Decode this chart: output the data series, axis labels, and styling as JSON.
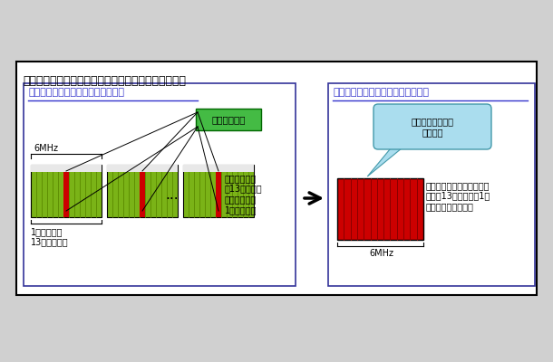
{
  "title": "従来のワンセグ放送とマルチワンセグメントサービス",
  "outer_box_color": "#000000",
  "bg_color": "#ffffff",
  "fig_bg": "#d0d0d0",
  "left_panel": {
    "title": "従来の「地上デジタルテレビ放送」",
    "title_color": "#3333cc",
    "box_bg": "#ffffff",
    "oneseg_label": "「ワンセグ」",
    "oneseg_box_color": "#00aa00",
    "oneseg_box_bg": "#44bb44",
    "mhz_label": "6MHz",
    "ch_label": "1チャンネル\n13セグメント",
    "annotation": "各チャンネル\nの13セグメン\nトの真ん中の\n1セグメント",
    "green_color": "#7ab317",
    "red_color": "#cc0000",
    "dark_green": "#5a8a00"
  },
  "right_panel": {
    "title": "「マルチワンセグメントサービス」",
    "title_color": "#3333cc",
    "box_bg": "#ffffff",
    "speech_bubble_text": "ワンセグ部分のみ\nを束れる",
    "speech_bubble_bg": "#aaddee",
    "mhz_label": "6MHz",
    "annotation": "「ワンセグ」のセグメント\nだけを13個集めて、1チ\nャンネルにして送信",
    "red_color": "#cc0000",
    "dark_red": "#990000"
  },
  "arrow_color": "#000000"
}
